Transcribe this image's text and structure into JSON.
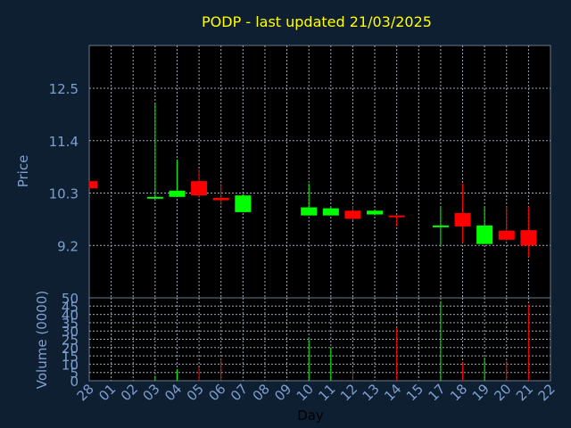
{
  "chart_data": {
    "type": "candlestick",
    "title": "PODP - last updated 21/03/2025",
    "price_axis": {
      "label": "Price",
      "ticks": [
        "12.5",
        "11.4",
        "10.3",
        "9.2"
      ],
      "tick_values": [
        12.5,
        11.4,
        10.3,
        9.2
      ],
      "ylim": [
        8.1,
        13.4
      ]
    },
    "volume_axis": {
      "label": "Volume (0000)",
      "ticks": [
        "50",
        "45",
        "40",
        "35",
        "30",
        "25",
        "20",
        "15",
        "10",
        "5",
        "0"
      ],
      "tick_values": [
        50,
        45,
        40,
        35,
        30,
        25,
        20,
        15,
        10,
        5,
        0
      ],
      "ylim": [
        0,
        50
      ]
    },
    "xlabel": "Day",
    "x_ticks": [
      "28",
      "01",
      "02",
      "03",
      "04",
      "05",
      "06",
      "07",
      "08",
      "09",
      "10",
      "11",
      "12",
      "13",
      "14",
      "15",
      "17",
      "18",
      "19",
      "20",
      "21",
      "22"
    ],
    "grid": true,
    "colors": {
      "up": "#00ff00",
      "down": "#ff0000",
      "title": "#ffff00",
      "axis": "#7f9fd0",
      "background": "#0f1f32",
      "plot": "#000000"
    },
    "candles": [
      {
        "day": "28",
        "open": 10.55,
        "high": 10.55,
        "low": 10.4,
        "close": 10.4,
        "volume": 0
      },
      {
        "day": "03",
        "open": 10.2,
        "high": 12.2,
        "low": 10.2,
        "close": 10.22,
        "volume": 3
      },
      {
        "day": "04",
        "open": 10.22,
        "high": 11.0,
        "low": 10.22,
        "close": 10.35,
        "volume": 7
      },
      {
        "day": "05",
        "open": 10.55,
        "high": 10.8,
        "low": 10.2,
        "close": 10.25,
        "volume": 8
      },
      {
        "day": "06",
        "open": 10.2,
        "high": 10.5,
        "low": 10.05,
        "close": 10.15,
        "volume": 13
      },
      {
        "day": "07",
        "open": 9.9,
        "high": 10.28,
        "low": 9.9,
        "close": 10.25,
        "volume": 0
      },
      {
        "day": "10",
        "open": 9.83,
        "high": 10.5,
        "low": 9.83,
        "close": 10.0,
        "volume": 25
      },
      {
        "day": "11",
        "open": 9.83,
        "high": 10.0,
        "low": 9.83,
        "close": 9.98,
        "volume": 20
      },
      {
        "day": "12",
        "open": 9.93,
        "high": 10.03,
        "low": 9.73,
        "close": 9.76,
        "volume": 7
      },
      {
        "day": "13",
        "open": 9.85,
        "high": 9.96,
        "low": 9.83,
        "close": 9.93,
        "volume": 0
      },
      {
        "day": "14",
        "open": 9.83,
        "high": 9.83,
        "low": 9.6,
        "close": 9.81,
        "volume": 32
      },
      {
        "day": "17",
        "open": 9.6,
        "high": 10.0,
        "low": 9.2,
        "close": 9.62,
        "volume": 48
      },
      {
        "day": "18",
        "open": 9.88,
        "high": 10.5,
        "low": 9.25,
        "close": 9.6,
        "volume": 11
      },
      {
        "day": "19",
        "open": 9.23,
        "high": 10.02,
        "low": 9.23,
        "close": 9.62,
        "volume": 14
      },
      {
        "day": "20",
        "open": 9.51,
        "high": 10.02,
        "low": 9.3,
        "close": 9.32,
        "volume": 12
      },
      {
        "day": "21",
        "open": 9.52,
        "high": 10.02,
        "low": 8.95,
        "close": 9.2,
        "volume": 46
      }
    ]
  }
}
